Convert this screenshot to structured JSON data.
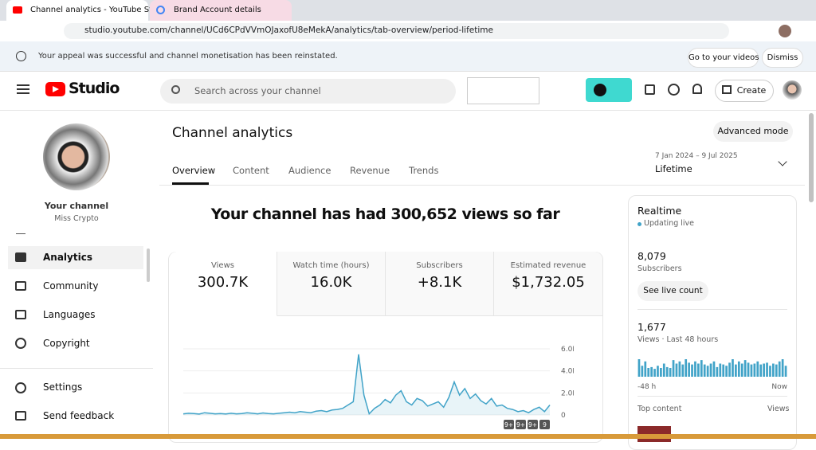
{
  "browser": {
    "tabs": [
      "Channel analytics - YouTube Studi",
      "Brand Account details"
    ],
    "url": "studio.youtube.com/channel/UCd6CPdVVmOJaxofU8eMekA/analytics/tab-overview/period-lifetime"
  },
  "banner": {
    "message": "Your appeal was successful and channel monetisation has been reinstated.",
    "buttons": [
      "Go to your videos",
      "Dismiss"
    ]
  },
  "header": {
    "logo": "Studio",
    "search_placeholder": "Search across your channel",
    "create": "Create"
  },
  "sidebar": {
    "channel_label": "Your channel",
    "channel_name": "Miss Crypto",
    "nav": [
      "Analytics",
      "Community",
      "Languages",
      "Copyright",
      "Settings",
      "Send feedback"
    ]
  },
  "main": {
    "title": "Channel analytics",
    "advanced_mode": "Advanced mode",
    "tabs": [
      "Overview",
      "Content",
      "Audience",
      "Revenue",
      "Trends"
    ],
    "date_range": "7 Jan 2024 – 9 Jul 2025",
    "period": "Lifetime",
    "headline": "Your channel has had 300,652 views so far",
    "metrics": [
      {
        "label": "Views",
        "value": "300.7K"
      },
      {
        "label": "Watch time (hours)",
        "value": "16.0K"
      },
      {
        "label": "Subscribers",
        "value": "+8.1K"
      },
      {
        "label": "Estimated revenue",
        "value": "$1,732.05"
      }
    ]
  },
  "realtime": {
    "title": "Realtime",
    "status": "Updating live",
    "subscribers": "8,079",
    "subscribers_label": "Subscribers",
    "button": "See live count",
    "views": "1,677",
    "views_label": "Views · Last 48 hours",
    "top_content": "Top content",
    "views_column": "Views"
  },
  "chart_data": [
    {
      "type": "line",
      "color": "#41a3c8",
      "values": [
        100,
        150,
        120,
        80,
        200,
        150,
        100,
        120,
        90,
        150,
        100,
        130,
        200,
        150,
        100,
        180,
        120,
        100,
        150,
        200,
        250,
        200,
        300,
        250,
        200,
        350,
        400,
        300,
        450,
        500,
        600,
        900,
        1200,
        5500,
        1800,
        100,
        600,
        900,
        1400,
        1100,
        1800,
        2200,
        1200,
        900,
        1500,
        1300,
        800,
        1000,
        1200,
        700,
        1600,
        3000,
        1800,
        2400,
        1500,
        1900,
        1300,
        1000,
        1500,
        800,
        900,
        600,
        500,
        300,
        400,
        200,
        500,
        700,
        300,
        900
      ],
      "ylim": [
        0,
        6000
      ],
      "yticks": [
        {
          "value": 6000,
          "label": "6.0K"
        },
        {
          "value": 4000,
          "label": "4.0K"
        },
        {
          "value": 2000,
          "label": "2.0K"
        },
        0
      ],
      "annotations": [
        "9+",
        "9+",
        "9+",
        "9"
      ]
    },
    {
      "type": "bar",
      "color": "#41a3c8",
      "values": [
        40,
        25,
        35,
        20,
        22,
        18,
        25,
        20,
        30,
        22,
        20,
        38,
        30,
        35,
        28,
        40,
        32,
        28,
        35,
        30,
        38,
        28,
        25,
        30,
        35,
        22,
        30,
        28,
        25,
        32,
        40,
        28,
        35,
        30,
        38,
        32,
        28,
        30,
        35,
        28,
        30,
        32,
        25,
        30,
        28,
        35,
        40,
        25
      ],
      "xlabels": [
        "-48 h",
        "Now"
      ]
    }
  ]
}
